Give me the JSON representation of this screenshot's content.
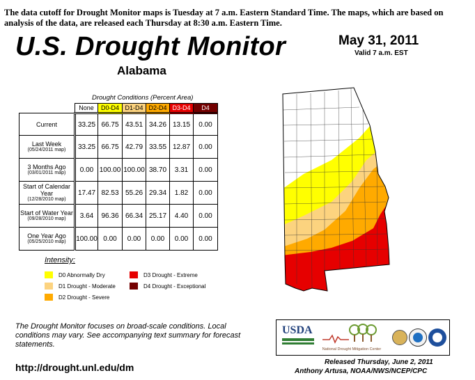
{
  "header": {
    "notice": "The data cutoff for Drought Monitor maps is Tuesday at 7 a.m. Eastern Standard Time. The maps, which are based on analysis of the data, are released each Thursday at 8:30 a.m. Eastern Time.",
    "title": "U.S. Drought Monitor",
    "state": "Alabama",
    "date": "May 31, 2011",
    "valid": "Valid 7 a.m. EST"
  },
  "table": {
    "caption": "Drought Conditions (Percent Area)",
    "columns": [
      "None",
      "D0-D4",
      "D1-D4",
      "D2-D4",
      "D3-D4",
      "D4"
    ],
    "column_colors": [
      "#ffffff",
      "#ffff00",
      "#fcd37f",
      "#ffaa00",
      "#e60000",
      "#730000"
    ],
    "rows": [
      {
        "label": "Current",
        "sub": "",
        "values": [
          "33.25",
          "66.75",
          "43.51",
          "34.26",
          "13.15",
          "0.00"
        ]
      },
      {
        "label": "Last Week",
        "sub": "(05/24/2011 map)",
        "values": [
          "33.25",
          "66.75",
          "42.79",
          "33.55",
          "12.87",
          "0.00"
        ]
      },
      {
        "label": "3 Months Ago",
        "sub": "(03/01/2011 map)",
        "values": [
          "0.00",
          "100.00",
          "100.00",
          "38.70",
          "3.31",
          "0.00"
        ]
      },
      {
        "label": "Start of Calendar Year",
        "sub": "(12/28/2010 map)",
        "values": [
          "17.47",
          "82.53",
          "55.26",
          "29.34",
          "1.82",
          "0.00"
        ]
      },
      {
        "label": "Start of Water Year",
        "sub": "(09/28/2010 map)",
        "values": [
          "3.64",
          "96.36",
          "66.34",
          "25.17",
          "4.40",
          "0.00"
        ]
      },
      {
        "label": "One Year Ago",
        "sub": "(05/25/2010 map)",
        "values": [
          "100.00",
          "0.00",
          "0.00",
          "0.00",
          "0.00",
          "0.00"
        ]
      }
    ]
  },
  "legend": {
    "title": "Intensity:",
    "items": [
      {
        "label": "D0 Abnormally Dry",
        "color": "#ffff00"
      },
      {
        "label": "D1 Drought - Moderate",
        "color": "#fcd37f"
      },
      {
        "label": "D2 Drought - Severe",
        "color": "#ffaa00"
      },
      {
        "label": "D3 Drought - Extreme",
        "color": "#e60000"
      },
      {
        "label": "D4 Drought - Exceptional",
        "color": "#730000"
      }
    ]
  },
  "footer": {
    "note": "The Drought Monitor focuses on broad-scale conditions. Local conditions may vary. See accompanying text summary for forecast statements.",
    "url": "http://drought.unl.edu/dm",
    "released": "Released Thursday, June 2, 2011",
    "author": "Anthony Artusa, NOAA/NWS/NCEP/CPC"
  },
  "logos": {
    "usda": "USDA",
    "ndmc": "National Drought Mitigation Center"
  }
}
